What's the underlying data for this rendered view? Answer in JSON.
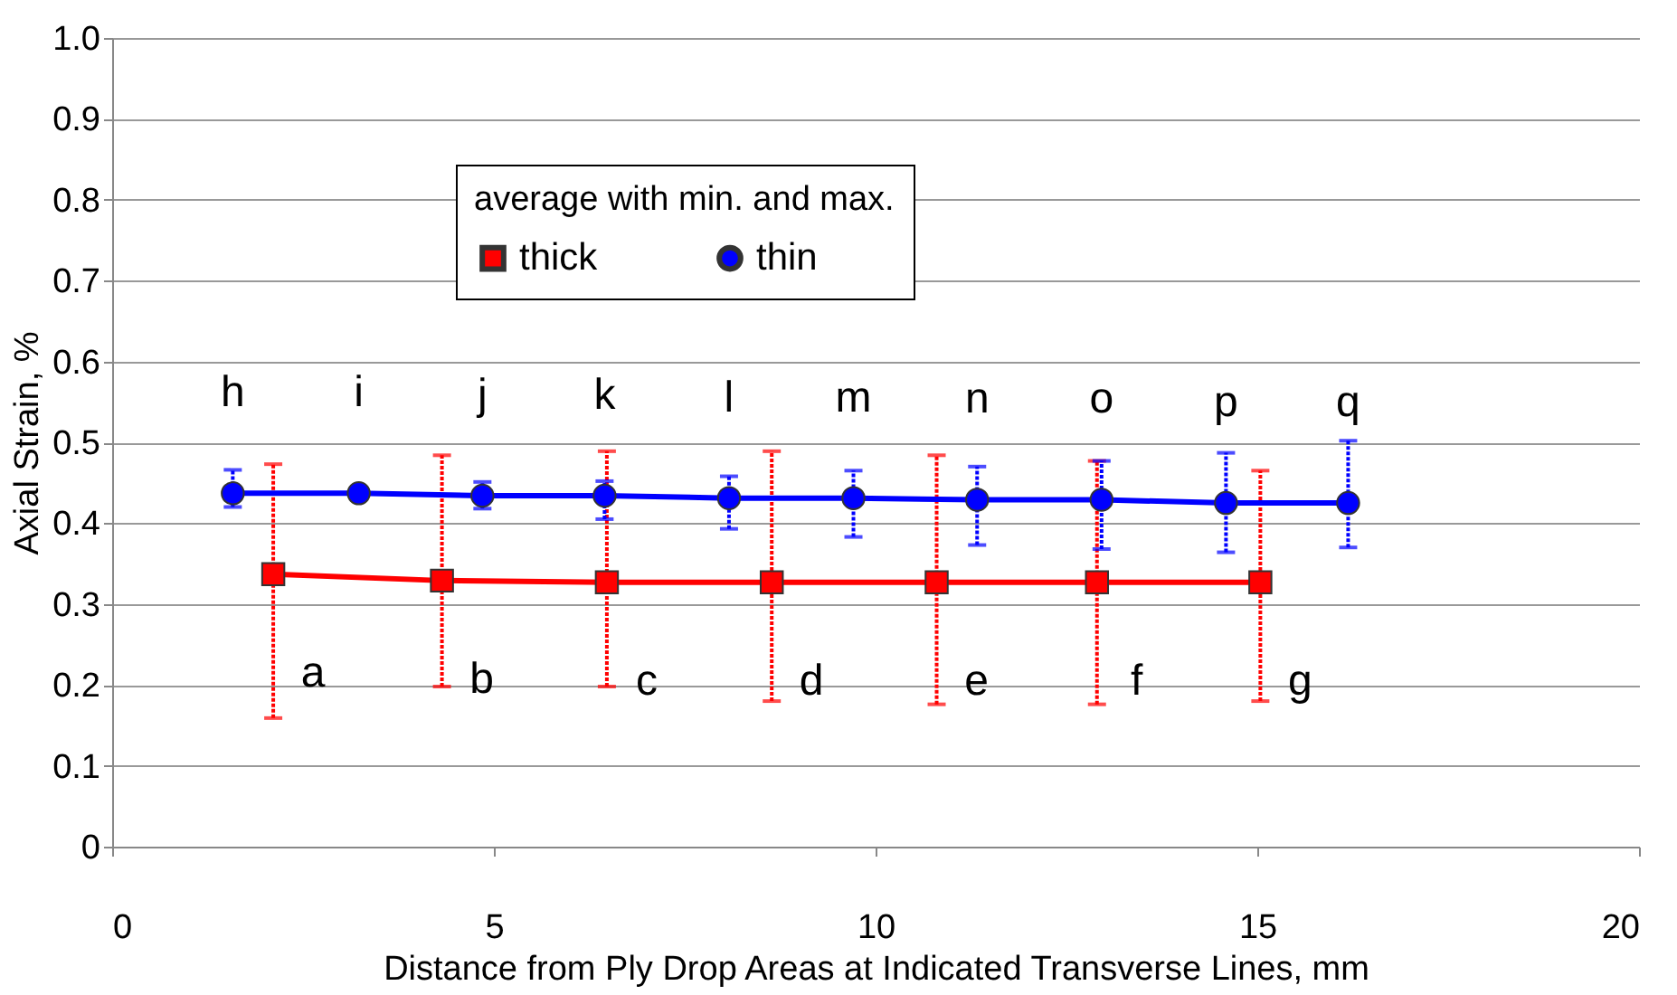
{
  "chart_data": {
    "type": "line",
    "xlabel": "Distance from Ply Drop Areas at Indicated Transverse Lines, mm",
    "ylabel": "Axial Strain, %",
    "legend_title": "average with min. and max.",
    "legend": "top",
    "grid": "y",
    "line_style": "solid",
    "xlim": [
      0,
      20
    ],
    "xticks": [
      0,
      5,
      10,
      15,
      20
    ],
    "ylim": [
      0,
      1.0
    ],
    "yticks": [
      0,
      {
        "value": 0.1,
        "label": "0.1"
      },
      {
        "value": 0.2,
        "label": "0.2"
      },
      {
        "value": 0.3,
        "label": "0.3"
      },
      {
        "value": 0.4,
        "label": "0.4"
      },
      {
        "value": 0.5,
        "label": "0.5"
      },
      {
        "value": 0.6,
        "label": "0.6"
      },
      {
        "value": 0.7,
        "label": "0.7"
      },
      {
        "value": 0.8,
        "label": "0.8"
      },
      {
        "value": 0.9,
        "label": "0.9"
      },
      {
        "value": 1.0,
        "label": "1.0"
      }
    ],
    "series": [
      {
        "name": "thick",
        "color": "#ff0000",
        "marker": "square",
        "x": [
          2.11,
          4.32,
          6.48,
          8.64,
          10.8,
          12.9,
          15.04
        ],
        "values": [
          0.337,
          0.329,
          0.327,
          0.327,
          0.327,
          0.327,
          0.327
        ],
        "errors": [
          [
            0.159,
            0.473
          ],
          [
            0.198,
            0.484
          ],
          [
            0.198,
            0.489
          ],
          [
            0.18,
            0.489
          ],
          [
            0.176,
            0.484
          ],
          [
            0.176,
            0.477
          ],
          [
            0.18,
            0.465
          ]
        ]
      },
      {
        "name": "thin",
        "color": "#0000ff",
        "marker": "circle",
        "x": [
          1.58,
          3.23,
          4.85,
          6.45,
          8.08,
          9.71,
          11.33,
          12.96,
          14.59,
          16.19
        ],
        "values": [
          0.437,
          0.437,
          0.434,
          0.434,
          0.431,
          0.431,
          0.429,
          0.429,
          0.425,
          0.425
        ],
        "errors": [
          [
            0.42,
            0.466
          ],
          [
            0.434,
            0.439
          ],
          [
            0.418,
            0.451
          ],
          [
            0.405,
            0.452
          ],
          [
            0.393,
            0.458
          ],
          [
            0.383,
            0.465
          ],
          [
            0.373,
            0.47
          ],
          [
            0.368,
            0.477
          ],
          [
            0.364,
            0.487
          ],
          [
            0.37,
            0.502
          ]
        ]
      }
    ],
    "annotations": [
      "a",
      "b",
      "c",
      "d",
      "e",
      "f",
      "g",
      "h",
      "i",
      "j",
      "k",
      "l",
      "m",
      "n",
      "o",
      "p",
      "q"
    ]
  }
}
